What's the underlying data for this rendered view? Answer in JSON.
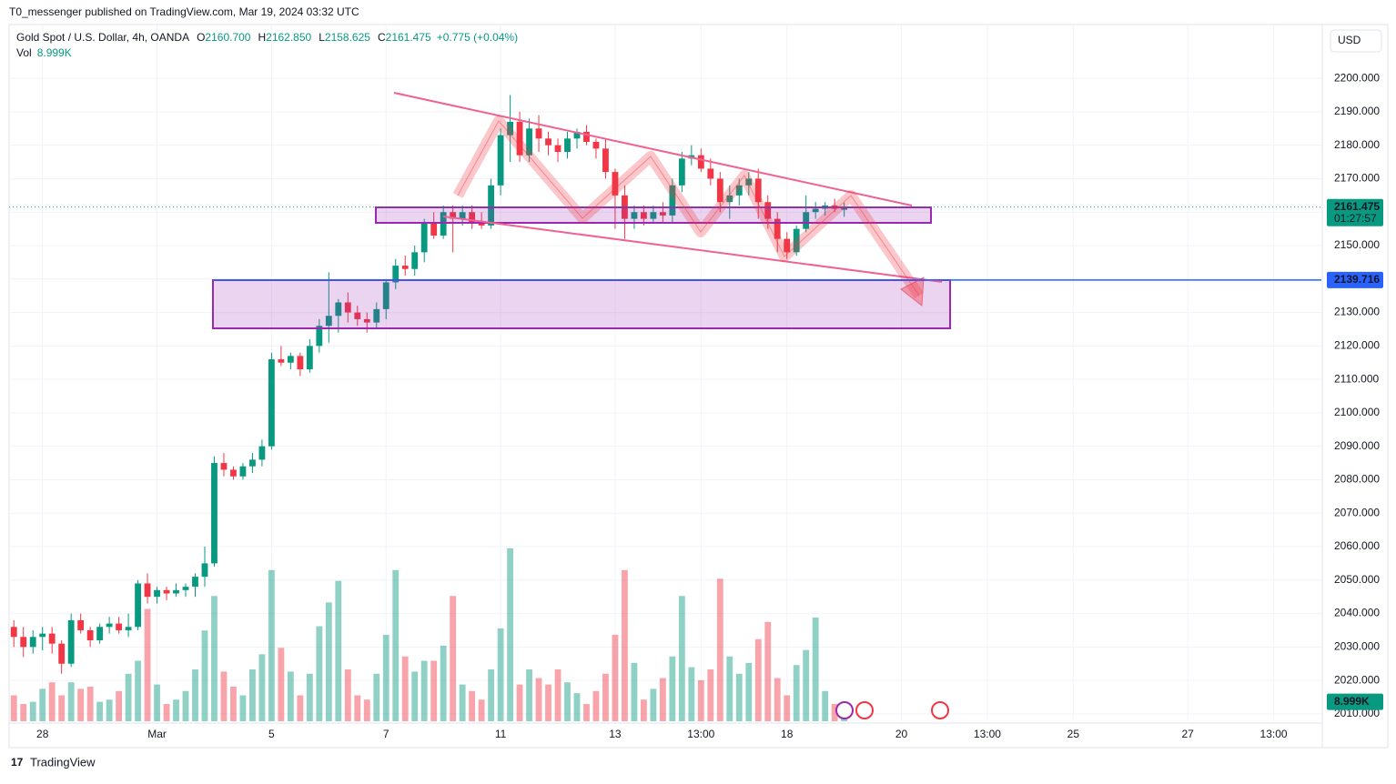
{
  "header": {
    "published": "T0_messenger published on TradingView.com, Mar 19, 2024 03:32 UTC"
  },
  "legend": {
    "symbol": "Gold Spot / U.S. Dollar, 4h, OANDA",
    "items": [
      {
        "key": "O",
        "text": "2160.700"
      },
      {
        "key": "H",
        "text": "2162.850"
      },
      {
        "key": "L",
        "text": "2158.625"
      },
      {
        "key": "C",
        "text": "2161.475"
      }
    ],
    "change": "+0.775 (+0.04%)",
    "vol_key": "Vol",
    "vol_text": "8.999K"
  },
  "currency": "USD",
  "footer": "TradingView",
  "chart_data": {
    "type": "candlestick",
    "up_color": "#089981",
    "down_color": "#f23645",
    "open": [
      2036,
      2033,
      2030,
      2033,
      2034,
      2031,
      2025,
      2038,
      2035,
      2032,
      2036,
      2037,
      2035,
      2036,
      2049,
      2045,
      2047,
      2046,
      2047,
      2048,
      2051,
      2055,
      2085,
      2083,
      2081,
      2084,
      2086,
      2090,
      2116,
      2115,
      2117,
      2113,
      2120,
      2126,
      2129,
      2133,
      2130,
      2128,
      2127,
      2131,
      2139,
      2144,
      2143,
      2148,
      2157,
      2153,
      2160,
      2158,
      2160,
      2157,
      2156,
      2168,
      2183,
      2187,
      2177,
      2185,
      2182,
      2180,
      2178,
      2182,
      2184,
      2181,
      2179,
      2172,
      2165,
      2158,
      2160,
      2158,
      2160,
      2159,
      2168,
      2176,
      2177,
      2173,
      2170,
      2163,
      2165,
      2168,
      2170,
      2163,
      2158,
      2152,
      2148,
      2155,
      2160,
      2161,
      2162,
      2160.7
    ],
    "high": [
      2038,
      2036,
      2035,
      2036,
      2036,
      2032,
      2040,
      2040,
      2036,
      2037,
      2039,
      2039,
      2040,
      2050,
      2052,
      2048,
      2048,
      2049,
      2049,
      2052,
      2060,
      2087,
      2088,
      2084,
      2085,
      2088,
      2092,
      2118,
      2120,
      2118,
      2118,
      2122,
      2128,
      2142,
      2134,
      2136,
      2132,
      2130,
      2133,
      2140,
      2146,
      2147,
      2150,
      2158,
      2160,
      2162,
      2162,
      2162,
      2162,
      2160,
      2170,
      2185,
      2195,
      2190,
      2188,
      2189,
      2184,
      2182,
      2184,
      2185,
      2186,
      2182,
      2182,
      2173,
      2168,
      2162,
      2162,
      2162,
      2163,
      2170,
      2178,
      2180,
      2179,
      2176,
      2172,
      2168,
      2170,
      2172,
      2173,
      2165,
      2160,
      2154,
      2156,
      2165,
      2163,
      2163,
      2164,
      2162.85
    ],
    "low": [
      2030,
      2027,
      2028,
      2029,
      2028,
      2022,
      2024,
      2034,
      2030,
      2031,
      2034,
      2034,
      2033,
      2035,
      2043,
      2043,
      2044,
      2045,
      2045,
      2045,
      2048,
      2054,
      2081,
      2080,
      2080,
      2082,
      2084,
      2089,
      2114,
      2113,
      2111,
      2112,
      2118,
      2121,
      2124,
      2127,
      2126,
      2124,
      2125,
      2128,
      2137,
      2141,
      2141,
      2145,
      2152,
      2152,
      2148,
      2156,
      2155,
      2155,
      2155,
      2165,
      2175,
      2175,
      2175,
      2178,
      2177,
      2175,
      2176,
      2179,
      2180,
      2176,
      2170,
      2155,
      2152,
      2155,
      2156,
      2157,
      2157,
      2157,
      2166,
      2174,
      2172,
      2168,
      2160,
      2158,
      2162,
      2165,
      2158,
      2155,
      2148,
      2146,
      2147,
      2154,
      2158,
      2159,
      2160,
      2158.625
    ],
    "close": [
      2033,
      2030,
      2033,
      2034,
      2031,
      2025,
      2038,
      2035,
      2032,
      2036,
      2037,
      2035,
      2036,
      2049,
      2045,
      2047,
      2046,
      2047,
      2048,
      2051,
      2055,
      2085,
      2083,
      2081,
      2084,
      2086,
      2090,
      2116,
      2115,
      2117,
      2113,
      2120,
      2126,
      2129,
      2133,
      2130,
      2128,
      2127,
      2131,
      2139,
      2144,
      2143,
      2148,
      2157,
      2153,
      2160,
      2158,
      2160,
      2157,
      2156,
      2168,
      2183,
      2187,
      2177,
      2185,
      2182,
      2180,
      2178,
      2182,
      2184,
      2181,
      2179,
      2172,
      2165,
      2158,
      2160,
      2158,
      2160,
      2159,
      2168,
      2176,
      2177,
      2173,
      2170,
      2163,
      2165,
      2168,
      2170,
      2163,
      2158,
      2152,
      2148,
      2155,
      2160,
      2161,
      2162,
      2161,
      2161.475
    ],
    "volume": [
      12,
      8,
      9,
      15,
      18,
      12,
      18,
      15,
      16,
      9,
      10,
      14,
      22,
      28,
      52,
      17,
      8,
      10,
      14,
      24,
      42,
      58,
      23,
      16,
      12,
      24,
      31,
      70,
      34,
      23,
      12,
      22,
      44,
      55,
      65,
      24,
      12,
      10,
      22,
      40,
      70,
      30,
      23,
      28,
      28,
      35,
      58,
      17,
      14,
      10,
      24,
      43,
      80,
      17,
      24,
      20,
      17,
      24,
      18,
      13,
      8,
      14,
      22,
      40,
      70,
      27,
      10,
      15,
      20,
      30,
      58,
      25,
      19,
      24,
      66,
      30,
      22,
      27,
      38,
      46,
      20,
      12,
      26,
      33,
      48,
      14,
      8,
      8.999
    ],
    "volume_label": "8.999K",
    "xlim": [
      -0.5,
      137
    ],
    "xticks": [
      {
        "value": 3,
        "label": "28"
      },
      {
        "value": 15,
        "label": "Mar"
      },
      {
        "value": 27,
        "label": "5"
      },
      {
        "value": 39,
        "label": "7"
      },
      {
        "value": 51,
        "label": "11"
      },
      {
        "value": 63,
        "label": "13"
      },
      {
        "value": 72,
        "label": "13:00"
      },
      {
        "value": 81,
        "label": "18"
      },
      {
        "value": 93,
        "label": "20"
      },
      {
        "value": 102,
        "label": "13:00"
      },
      {
        "value": 111,
        "label": "25"
      },
      {
        "value": 123,
        "label": "27"
      },
      {
        "value": 132,
        "label": "13:00"
      }
    ],
    "ylim": [
      2007.8,
      2215.8
    ],
    "yticks": [
      {
        "value": 2010,
        "label": "2010.000"
      },
      {
        "value": 2020,
        "label": "2020.000"
      },
      {
        "value": 2030,
        "label": "2030.000"
      },
      {
        "value": 2040,
        "label": "2040.000"
      },
      {
        "value": 2050,
        "label": "2050.000"
      },
      {
        "value": 2060,
        "label": "2060.000"
      },
      {
        "value": 2070,
        "label": "2070.000"
      },
      {
        "value": 2080,
        "label": "2080.000"
      },
      {
        "value": 2090,
        "label": "2090.000"
      },
      {
        "value": 2100,
        "label": "2100.000"
      },
      {
        "value": 2110,
        "label": "2110.000"
      },
      {
        "value": 2120,
        "label": "2120.000"
      },
      {
        "value": 2130,
        "label": "2130.000"
      },
      {
        "value": 2140,
        "label": "2140.000"
      },
      {
        "value": 2150,
        "label": "2150.000"
      },
      {
        "value": 2160,
        "label": "2160.000"
      },
      {
        "value": 2170,
        "label": "2170.000"
      },
      {
        "value": 2180,
        "label": "2180.000"
      },
      {
        "value": 2190,
        "label": "2190.000"
      },
      {
        "value": 2200,
        "label": "2200.000"
      }
    ],
    "grid": true,
    "last_price": 2161.475,
    "countdown": "01:27:57",
    "level": 2139.716,
    "level_color": "#2962ff"
  }
}
